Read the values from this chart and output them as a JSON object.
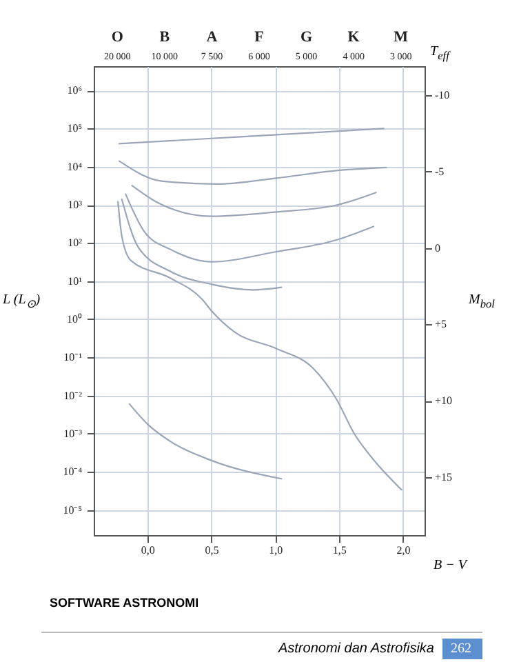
{
  "chart_data": {
    "type": "line",
    "xlabel": "B − V",
    "ylabel": "L (L$_{⊙}$)",
    "y2label": "M$_{bol}$",
    "x2label": "T$_{eff}$",
    "xlim": [
      -0.42,
      2.17
    ],
    "xticks": [
      {
        "value": 0,
        "label": "0,0"
      },
      {
        "value": 0.5,
        "label": "0,5"
      },
      {
        "value": 1,
        "label": "1,0"
      },
      {
        "value": 1.5,
        "label": "1,5"
      },
      {
        "value": 2,
        "label": "2,0"
      }
    ],
    "ylim": [
      2.2e-06,
      4300000
    ],
    "yticks": [
      {
        "value": 1000000,
        "label": "10⁶"
      },
      {
        "value": 100000,
        "label": "10⁵"
      },
      {
        "value": 10000,
        "label": "10⁴"
      },
      {
        "value": 1000,
        "label": "10³"
      },
      {
        "value": 100,
        "label": "10²"
      },
      {
        "value": 10,
        "label": "10¹"
      },
      {
        "value": 1,
        "label": "10⁰"
      },
      {
        "value": 0.1,
        "label": "10⁻¹"
      },
      {
        "value": 0.01,
        "label": "10⁻²"
      },
      {
        "value": 0.001,
        "label": "10⁻³"
      },
      {
        "value": 0.0001,
        "label": "10⁻⁴"
      },
      {
        "value": 1e-05,
        "label": "10⁻⁵"
      }
    ],
    "y2lim": [
      18.8,
      -11.9
    ],
    "y2ticks": [
      -10,
      -5,
      0,
      {
        "value": 5,
        "label": "+5"
      },
      {
        "value": 10,
        "label": "+10"
      },
      {
        "value": 15,
        "label": "+15"
      }
    ],
    "log": "y",
    "grid": true,
    "series": [
      {
        "color": "#9aa6b8",
        "x": [
          -0.22,
          0.5,
          1.85
        ],
        "values": [
          40000,
          55000,
          100000
        ]
      },
      {
        "color": "#9aa6b8",
        "x": [
          -0.22,
          0.11,
          0.54,
          1.01,
          1.48,
          1.87
        ],
        "values": [
          14000,
          4200,
          3500,
          5000,
          7900,
          9500
        ]
      },
      {
        "color": "#9aa6b8",
        "x": [
          -0.12,
          0.09,
          0.5,
          1.01,
          1.48,
          1.79
        ],
        "values": [
          3200,
          1100,
          500,
          650,
          980,
          2100
        ]
      },
      {
        "color": "#9aa6b8",
        "x": [
          -0.17,
          -0.02,
          0.18,
          0.5,
          1.01,
          1.48,
          1.77
        ],
        "values": [
          1900,
          190,
          68,
          32,
          59,
          120,
          270
        ]
      },
      {
        "color": "#9aa6b8",
        "x": [
          -0.2,
          -0.07,
          0.18,
          0.5,
          0.83,
          1.05
        ],
        "values": [
          1400,
          76,
          18,
          8.3,
          5.9,
          6.9
        ]
      },
      {
        "color": "#9aa6b8",
        "x": [
          -0.23,
          -0.2,
          -0.13,
          0.18,
          0.43,
          0.5,
          0.68,
          1.01,
          1.3,
          1.48,
          1.62,
          1.77,
          1.99
        ],
        "values": [
          1200,
          150,
          35,
          12,
          3.3,
          1.7,
          0.47,
          0.17,
          0.051,
          0.0081,
          0.001,
          0.00021,
          3.4e-05
        ]
      },
      {
        "color": "#9aa6b8",
        "x": [
          -0.14,
          0,
          0.18,
          0.5,
          1.05
        ],
        "values": [
          0.006,
          0.0018,
          0.00063,
          0.0002,
          6.6e-05
        ]
      }
    ],
    "annotations": [
      "SOFTWARE ASTRONOMI",
      "Astronomi dan Astrofisika",
      "262",
      "20 000",
      "10 000",
      "7 500",
      "6 000",
      "5 000",
      "4 000",
      "3 000",
      "O",
      "B",
      "A",
      "F",
      "G",
      "K",
      "M"
    ]
  }
}
